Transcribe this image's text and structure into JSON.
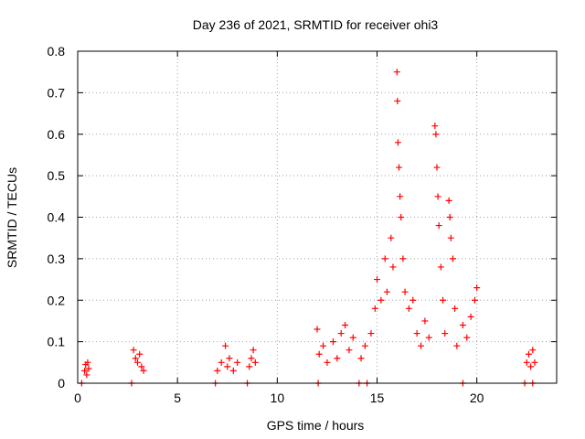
{
  "chart_data": {
    "type": "scatter",
    "title": "Day 236 of 2021, SRMTID for receiver ohi3",
    "xlabel": "GPS time / hours",
    "ylabel": "SRMTID / TECUs",
    "xlim": [
      0,
      24
    ],
    "ylim": [
      0,
      0.8
    ],
    "xticks": [
      0,
      5,
      10,
      15,
      20
    ],
    "xtick_labels": [
      "0",
      "5",
      "10",
      "15",
      "20"
    ],
    "yticks": [
      0,
      0.1,
      0.2,
      0.3,
      0.4,
      0.5,
      0.6,
      0.7,
      0.8
    ],
    "ytick_labels": [
      "0",
      "0.1",
      "0.2",
      "0.3",
      "0.4",
      "0.5",
      "0.6",
      "0.7",
      "0.8"
    ],
    "grid": true,
    "marker": "plus",
    "color": "#ff0000",
    "series": [
      {
        "name": "SRMTID",
        "points": [
          [
            0.35,
            0.03
          ],
          [
            0.4,
            0.045
          ],
          [
            0.45,
            0.02
          ],
          [
            0.5,
            0.05
          ],
          [
            0.55,
            0.035
          ],
          [
            2.8,
            0.08
          ],
          [
            2.9,
            0.06
          ],
          [
            3.0,
            0.05
          ],
          [
            3.1,
            0.07
          ],
          [
            3.2,
            0.04
          ],
          [
            3.3,
            0.03
          ],
          [
            7.0,
            0.03
          ],
          [
            7.2,
            0.05
          ],
          [
            7.4,
            0.09
          ],
          [
            7.5,
            0.04
          ],
          [
            7.6,
            0.06
          ],
          [
            7.8,
            0.03
          ],
          [
            8.0,
            0.05
          ],
          [
            8.6,
            0.04
          ],
          [
            8.7,
            0.06
          ],
          [
            8.8,
            0.08
          ],
          [
            8.9,
            0.05
          ],
          [
            12.0,
            0.13
          ],
          [
            12.1,
            0.07
          ],
          [
            12.3,
            0.09
          ],
          [
            12.5,
            0.05
          ],
          [
            12.8,
            0.1
          ],
          [
            13.0,
            0.06
          ],
          [
            13.2,
            0.12
          ],
          [
            13.4,
            0.14
          ],
          [
            13.6,
            0.08
          ],
          [
            13.8,
            0.11
          ],
          [
            14.2,
            0.06
          ],
          [
            14.4,
            0.09
          ],
          [
            14.7,
            0.12
          ],
          [
            14.9,
            0.18
          ],
          [
            15.0,
            0.25
          ],
          [
            15.2,
            0.2
          ],
          [
            15.4,
            0.3
          ],
          [
            15.5,
            0.22
          ],
          [
            15.7,
            0.35
          ],
          [
            15.8,
            0.28
          ],
          [
            16.0,
            0.75
          ],
          [
            16.02,
            0.68
          ],
          [
            16.05,
            0.58
          ],
          [
            16.1,
            0.52
          ],
          [
            16.15,
            0.45
          ],
          [
            16.2,
            0.4
          ],
          [
            16.3,
            0.3
          ],
          [
            16.4,
            0.22
          ],
          [
            16.6,
            0.18
          ],
          [
            16.8,
            0.2
          ],
          [
            17.0,
            0.12
          ],
          [
            17.2,
            0.09
          ],
          [
            17.4,
            0.15
          ],
          [
            17.6,
            0.11
          ],
          [
            17.9,
            0.62
          ],
          [
            17.95,
            0.6
          ],
          [
            18.0,
            0.52
          ],
          [
            18.05,
            0.45
          ],
          [
            18.1,
            0.38
          ],
          [
            18.2,
            0.28
          ],
          [
            18.3,
            0.2
          ],
          [
            18.4,
            0.12
          ],
          [
            18.6,
            0.44
          ],
          [
            18.65,
            0.4
          ],
          [
            18.7,
            0.35
          ],
          [
            18.8,
            0.3
          ],
          [
            18.9,
            0.18
          ],
          [
            19.0,
            0.09
          ],
          [
            19.3,
            0.14
          ],
          [
            19.5,
            0.11
          ],
          [
            19.7,
            0.16
          ],
          [
            19.9,
            0.2
          ],
          [
            20.0,
            0.23
          ],
          [
            22.5,
            0.05
          ],
          [
            22.6,
            0.07
          ],
          [
            22.7,
            0.04
          ],
          [
            22.8,
            0.08
          ],
          [
            22.9,
            0.05
          ],
          [
            0.2,
            0.0
          ],
          [
            2.7,
            0.0
          ],
          [
            6.9,
            0.0
          ],
          [
            8.5,
            0.0
          ],
          [
            12.05,
            0.0
          ],
          [
            14.1,
            0.0
          ],
          [
            14.5,
            0.0
          ],
          [
            19.3,
            0.0
          ],
          [
            22.4,
            0.0
          ],
          [
            22.8,
            0.0
          ]
        ]
      }
    ]
  }
}
